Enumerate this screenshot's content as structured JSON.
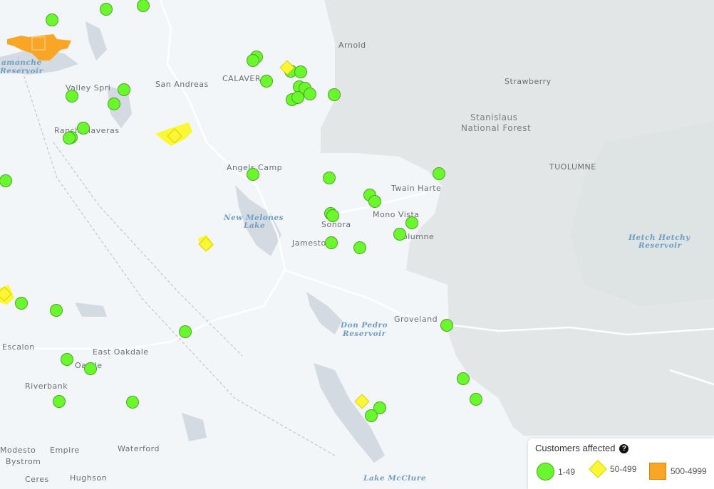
{
  "map": {
    "places": [
      "Arnold",
      "Strawberry",
      "Stanislaus",
      "National Forest",
      "TUOLUMNE",
      "CALAVER",
      "San Andreas",
      "Valley Spri",
      "Ranch  alaveras",
      "Angels Camp",
      "Twain Harte",
      "Mono Vista",
      "Sonora",
      "Jamesto",
      "Tuolumne",
      "Groveland",
      "Escalon",
      "East Oakdale",
      "Oa  ale",
      "Riverbank",
      "Modesto",
      "Empire",
      "Waterford",
      "Bystrom",
      "Hughson",
      "Ceres"
    ],
    "water": [
      "amanche",
      "Reservoir",
      "New Melones",
      "Lake",
      "Hetch Hetchy",
      "Reservoir",
      "Don Pedro",
      "Reservoir",
      "Lake McClure"
    ],
    "outages": {
      "green_count": 44,
      "yellow_count": 5,
      "orange_count": 1
    }
  },
  "legend": {
    "title": "Customers affected",
    "help_icon": "?",
    "items": [
      {
        "label": "1-49",
        "shape": "circle",
        "color": "#6af72e"
      },
      {
        "label": "50-499",
        "shape": "diamond",
        "color": "#fbf737"
      },
      {
        "label": "500-4999",
        "shape": "square",
        "color": "#f9a626"
      }
    ]
  }
}
